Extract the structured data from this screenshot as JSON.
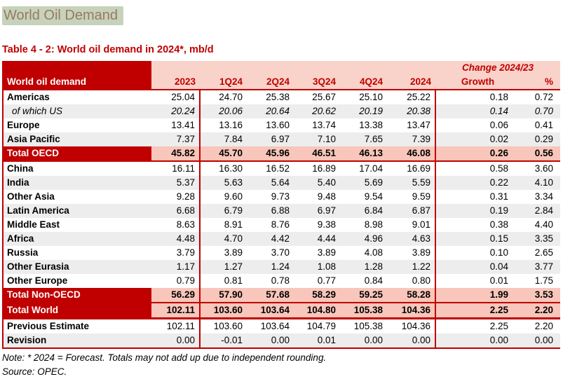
{
  "page": {
    "title": "World Oil Demand",
    "table_title": "Table 4 - 2: World oil demand in 2024*, mb/d",
    "note": "Note: * 2024 = Forecast. Totals may not add up due to independent rounding.",
    "source": "Source: OPEC."
  },
  "colors": {
    "dark_red": "#c00000",
    "header_pink": "#f9d3ca",
    "total_pink": "#f8c6ba",
    "stripe_gray": "#ededed",
    "title_text": "#9a7866",
    "title_highlight": "#c6d3ba"
  },
  "table": {
    "label_header": "World oil demand",
    "group_header": "Change 2024/23",
    "columns": [
      "2023",
      "1Q24",
      "2Q24",
      "3Q24",
      "4Q24",
      "2024",
      "Growth",
      "%"
    ],
    "rows": [
      {
        "label": "Americas",
        "style": "plain",
        "values": [
          "25.04",
          "24.70",
          "25.38",
          "25.67",
          "25.10",
          "25.22",
          "0.18",
          "0.72"
        ]
      },
      {
        "label": "of which US",
        "style": "sub",
        "values": [
          "20.24",
          "20.06",
          "20.64",
          "20.62",
          "20.19",
          "20.38",
          "0.14",
          "0.70"
        ]
      },
      {
        "label": "Europe",
        "style": "plain",
        "values": [
          "13.41",
          "13.16",
          "13.60",
          "13.74",
          "13.38",
          "13.47",
          "0.06",
          "0.41"
        ]
      },
      {
        "label": "Asia Pacific",
        "style": "stripe",
        "values": [
          "7.37",
          "7.84",
          "6.97",
          "7.10",
          "7.65",
          "7.39",
          "0.02",
          "0.29"
        ]
      },
      {
        "label": "Total OECD",
        "style": "total",
        "values": [
          "45.82",
          "45.70",
          "45.96",
          "46.51",
          "46.13",
          "46.08",
          "0.26",
          "0.56"
        ]
      },
      {
        "label": "China",
        "style": "plain",
        "values": [
          "16.11",
          "16.30",
          "16.52",
          "16.89",
          "17.04",
          "16.69",
          "0.58",
          "3.60"
        ]
      },
      {
        "label": "India",
        "style": "stripe",
        "values": [
          "5.37",
          "5.63",
          "5.64",
          "5.40",
          "5.69",
          "5.59",
          "0.22",
          "4.10"
        ]
      },
      {
        "label": "Other Asia",
        "style": "plain",
        "values": [
          "9.28",
          "9.60",
          "9.73",
          "9.48",
          "9.54",
          "9.59",
          "0.31",
          "3.34"
        ]
      },
      {
        "label": "Latin America",
        "style": "stripe",
        "values": [
          "6.68",
          "6.79",
          "6.88",
          "6.97",
          "6.84",
          "6.87",
          "0.19",
          "2.84"
        ]
      },
      {
        "label": "Middle East",
        "style": "plain",
        "values": [
          "8.63",
          "8.91",
          "8.76",
          "9.38",
          "8.98",
          "9.01",
          "0.38",
          "4.40"
        ]
      },
      {
        "label": "Africa",
        "style": "stripe",
        "values": [
          "4.48",
          "4.70",
          "4.42",
          "4.44",
          "4.96",
          "4.63",
          "0.15",
          "3.35"
        ]
      },
      {
        "label": "Russia",
        "style": "plain",
        "values": [
          "3.79",
          "3.89",
          "3.70",
          "3.89",
          "4.08",
          "3.89",
          "0.10",
          "2.65"
        ]
      },
      {
        "label": "Other Eurasia",
        "style": "stripe",
        "values": [
          "1.17",
          "1.27",
          "1.24",
          "1.08",
          "1.28",
          "1.22",
          "0.04",
          "3.77"
        ]
      },
      {
        "label": "Other Europe",
        "style": "plain",
        "values": [
          "0.79",
          "0.81",
          "0.78",
          "0.77",
          "0.84",
          "0.80",
          "0.01",
          "1.75"
        ]
      },
      {
        "label": "Total Non-OECD",
        "style": "total",
        "values": [
          "56.29",
          "57.90",
          "57.68",
          "58.29",
          "59.25",
          "58.28",
          "1.99",
          "3.53"
        ]
      },
      {
        "label": "Total World",
        "style": "total total-world",
        "values": [
          "102.11",
          "103.60",
          "103.64",
          "104.80",
          "105.38",
          "104.36",
          "2.25",
          "2.20"
        ]
      },
      {
        "label": "Previous Estimate",
        "style": "plain",
        "values": [
          "102.11",
          "103.60",
          "103.64",
          "104.79",
          "105.38",
          "104.36",
          "2.25",
          "2.20"
        ]
      },
      {
        "label": "Revision",
        "style": "stripe",
        "values": [
          "0.00",
          "-0.01",
          "0.00",
          "0.01",
          "0.00",
          "0.00",
          "0.00",
          "0.00"
        ]
      }
    ]
  }
}
